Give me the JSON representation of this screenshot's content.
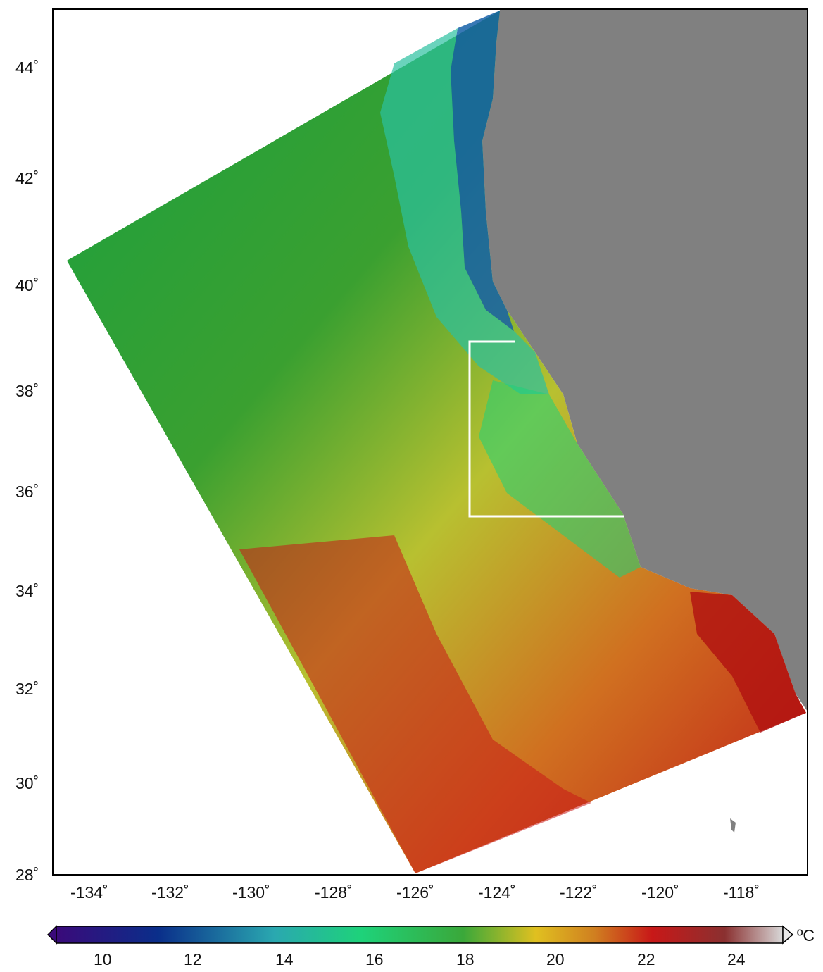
{
  "map": {
    "lat_ticks": [
      "44˚",
      "42˚",
      "40˚",
      "38˚",
      "36˚",
      "34˚",
      "32˚",
      "30˚",
      "28˚"
    ],
    "lon_ticks": [
      "-134˚",
      "-132˚",
      "-130˚",
      "-128˚",
      "-126˚",
      "-124˚",
      "-122˚",
      "-120˚",
      "-118˚"
    ],
    "colors": {
      "land": "#808080",
      "frame": "#000000",
      "box": "#ffffff"
    }
  },
  "colorbar": {
    "ticks": [
      "10",
      "12",
      "14",
      "16",
      "18",
      "20",
      "22",
      "24"
    ],
    "unit": "ºC",
    "colors": [
      "#3a0a7a",
      "#0a2e8a",
      "#2aa8b0",
      "#1ed27a",
      "#3aa83a",
      "#e0c020",
      "#c81818",
      "#8a3030",
      "#d8d8d8"
    ]
  }
}
